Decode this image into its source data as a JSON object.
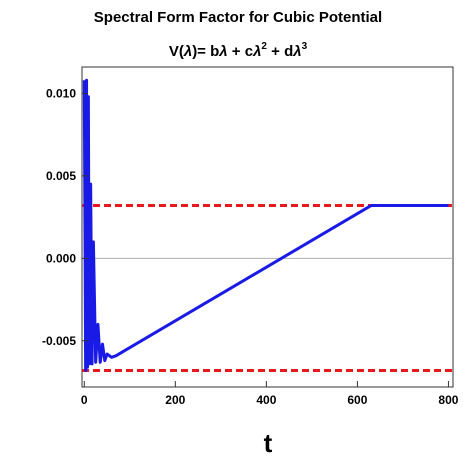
{
  "chart_data": {
    "type": "line",
    "title": "Spectral Form Factor for Cubic Potential",
    "subtitle": {
      "prefix": "V(",
      "lambda": "λ",
      "after_paren": ")= b",
      "plus_c": " + c",
      "plus_d": " + d",
      "exp2": "2",
      "exp3": "3"
    },
    "xlabel": "t",
    "ylabel": "",
    "xlim": [
      -5,
      810
    ],
    "ylim": [
      -0.0078,
      0.0116
    ],
    "x_ticks": [
      0,
      200,
      400,
      600,
      800
    ],
    "x_tick_labels": [
      "0",
      "200",
      "400",
      "600",
      "800"
    ],
    "y_ticks": [
      -0.005,
      0.0,
      0.005,
      0.01
    ],
    "y_tick_labels": [
      "-0.005",
      "0.000",
      "0.005",
      "0.010"
    ],
    "grid": false,
    "reference_lines": [
      {
        "y": 0.0032,
        "style": "dashed",
        "color": "#e41a1c"
      },
      {
        "y": -0.0068,
        "style": "dashed",
        "color": "#e41a1c"
      },
      {
        "y": 0.0,
        "style": "solid",
        "color": "#b0b0b0"
      }
    ],
    "series": [
      {
        "color": "#1a1ae6",
        "x": [
          0,
          3,
          5,
          7,
          9,
          11,
          14,
          17,
          20,
          25,
          30,
          35,
          40,
          45,
          50,
          60,
          70,
          630,
          800
        ],
        "y": [
          0.0108,
          -0.0068,
          0.0108,
          -0.0066,
          0.0098,
          -0.0064,
          0.0045,
          -0.0064,
          0.001,
          -0.0063,
          -0.004,
          -0.0063,
          -0.0052,
          -0.0062,
          -0.0058,
          -0.006,
          -0.0059,
          0.0032,
          0.0032
        ]
      }
    ]
  }
}
